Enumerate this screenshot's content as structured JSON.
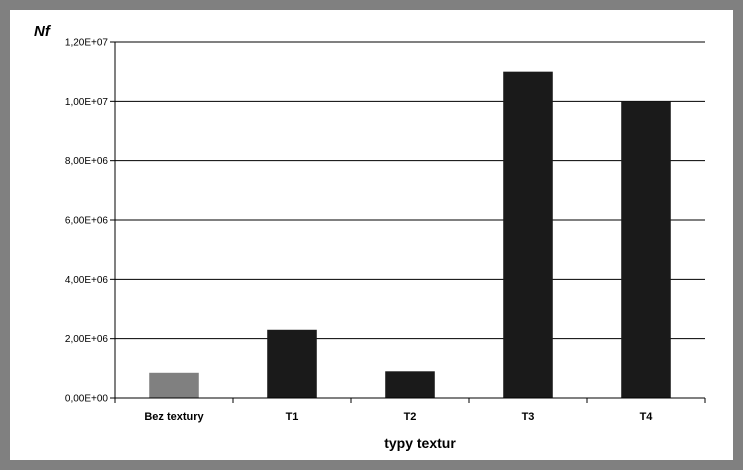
{
  "chart_data": {
    "type": "bar",
    "title": "",
    "ylabel": "Nf",
    "xlabel": "typy textur",
    "categories": [
      "Bez textury",
      "T1",
      "T2",
      "T3",
      "T4"
    ],
    "values": [
      850000,
      2300000,
      900000,
      11000000,
      10000000
    ],
    "ylim": [
      0,
      12000000
    ],
    "yticks": [
      0,
      2000000,
      4000000,
      6000000,
      8000000,
      10000000,
      12000000
    ],
    "ytick_labels": [
      "0,00E+00",
      "2,00E+06",
      "4,00E+06",
      "6,00E+06",
      "8,00E+06",
      "1,00E+07",
      "1,20E+07"
    ],
    "grid": true,
    "legend": "none",
    "colors": {
      "bars": [
        "#808080",
        "#1a1a1a",
        "#1a1a1a",
        "#1a1a1a",
        "#1a1a1a"
      ],
      "frame": "#808080",
      "grid": "#000000"
    }
  }
}
